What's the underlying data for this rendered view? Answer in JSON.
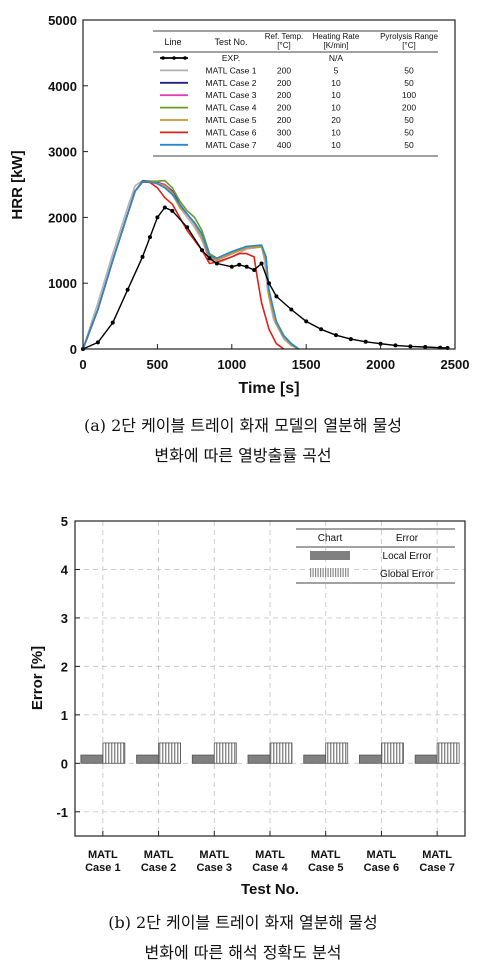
{
  "figure": {
    "caption_a_line1": "(a) 2단 케이블 트레이 화재 모델의 열분해 물성",
    "caption_a_line2": "변화에 따른 열방출률 곡선",
    "caption_b_line1": "(b) 2단 케이블 트레이 화재 열분해 물성",
    "caption_b_line2": "변화에 따른 해석 정확도 분석"
  },
  "chart_data": [
    {
      "type": "line",
      "xlabel": "Time [s]",
      "ylabel": "HRR [kW]",
      "xlim": [
        0,
        2500
      ],
      "ylim": [
        0,
        5000
      ],
      "xticks": [
        0,
        500,
        1000,
        1500,
        2000,
        2500
      ],
      "yticks": [
        0,
        1000,
        2000,
        3000,
        4000,
        5000
      ],
      "grid": false,
      "legend_table": {
        "headers": [
          "Line",
          "Test No.",
          "Ref. Temp. [°C]",
          "Heating Rate [K/min]",
          "Pyrolysis Range [°C]"
        ],
        "rows": [
          {
            "test": "EXP.",
            "ref_temp": "",
            "heating_rate": "N/A",
            "pyrolysis": ""
          },
          {
            "test": "MATL Case 1",
            "ref_temp": "200",
            "heating_rate": "5",
            "pyrolysis": "50"
          },
          {
            "test": "MATL Case 2",
            "ref_temp": "200",
            "heating_rate": "10",
            "pyrolysis": "50"
          },
          {
            "test": "MATL Case 3",
            "ref_temp": "200",
            "heating_rate": "10",
            "pyrolysis": "100"
          },
          {
            "test": "MATL Case 4",
            "ref_temp": "200",
            "heating_rate": "10",
            "pyrolysis": "200"
          },
          {
            "test": "MATL Case 5",
            "ref_temp": "200",
            "heating_rate": "20",
            "pyrolysis": "50"
          },
          {
            "test": "MATL Case 6",
            "ref_temp": "300",
            "heating_rate": "10",
            "pyrolysis": "50"
          },
          {
            "test": "MATL Case 7",
            "ref_temp": "400",
            "heating_rate": "10",
            "pyrolysis": "50"
          }
        ]
      },
      "series": [
        {
          "name": "EXP.",
          "color": "#000000",
          "marker": "circle",
          "x": [
            0,
            100,
            200,
            300,
            400,
            450,
            500,
            550,
            600,
            700,
            800,
            850,
            900,
            1000,
            1050,
            1100,
            1150,
            1200,
            1250,
            1300,
            1400,
            1500,
            1600,
            1700,
            1800,
            1900,
            2000,
            2100,
            2200,
            2300,
            2400,
            2450
          ],
          "y": [
            0,
            100,
            400,
            900,
            1400,
            1700,
            2000,
            2150,
            2100,
            1850,
            1500,
            1380,
            1300,
            1250,
            1280,
            1250,
            1200,
            1300,
            1000,
            800,
            600,
            420,
            300,
            210,
            150,
            110,
            80,
            55,
            40,
            30,
            20,
            15
          ]
        },
        {
          "name": "MATL Case 1",
          "color": "#b3b3b3",
          "x": [
            0,
            100,
            200,
            300,
            350,
            400,
            450,
            500,
            550,
            600,
            650,
            700,
            750,
            800,
            850,
            900,
            1000,
            1100,
            1200,
            1220,
            1240,
            1280,
            1350,
            1400,
            1450
          ],
          "y": [
            0,
            700,
            1450,
            2150,
            2480,
            2560,
            2550,
            2520,
            2450,
            2350,
            2150,
            2000,
            1850,
            1650,
            1350,
            1300,
            1400,
            1520,
            1550,
            1350,
            900,
            450,
            150,
            50,
            0
          ]
        },
        {
          "name": "MATL Case 2",
          "color": "#1f1f8f",
          "x": [
            0,
            100,
            200,
            300,
            350,
            400,
            450,
            500,
            550,
            600,
            650,
            700,
            750,
            800,
            850,
            900,
            1000,
            1100,
            1200,
            1230,
            1250,
            1300,
            1350,
            1400,
            1450
          ],
          "y": [
            0,
            600,
            1350,
            2050,
            2400,
            2550,
            2550,
            2530,
            2500,
            2400,
            2200,
            2050,
            1900,
            1720,
            1400,
            1350,
            1450,
            1550,
            1560,
            1400,
            850,
            400,
            200,
            80,
            0
          ]
        },
        {
          "name": "MATL Case 3",
          "color": "#e040b0",
          "x": [
            0,
            100,
            200,
            300,
            350,
            400,
            450,
            500,
            550,
            600,
            650,
            700,
            750,
            800,
            850,
            900,
            1000,
            1100,
            1200,
            1230,
            1250,
            1300,
            1350,
            1400,
            1450
          ],
          "y": [
            0,
            600,
            1350,
            2050,
            2400,
            2540,
            2540,
            2520,
            2500,
            2380,
            2180,
            2050,
            1900,
            1700,
            1380,
            1350,
            1450,
            1540,
            1560,
            1350,
            800,
            380,
            180,
            60,
            0
          ]
        },
        {
          "name": "MATL Case 4",
          "color": "#6a9a2a",
          "x": [
            0,
            100,
            200,
            300,
            350,
            400,
            450,
            500,
            550,
            600,
            650,
            700,
            750,
            800,
            850,
            900,
            1000,
            1100,
            1200,
            1230,
            1250,
            1300,
            1350,
            1400,
            1450
          ],
          "y": [
            0,
            600,
            1350,
            2050,
            2400,
            2540,
            2550,
            2550,
            2560,
            2450,
            2250,
            2100,
            2000,
            1800,
            1450,
            1380,
            1480,
            1560,
            1570,
            1400,
            850,
            400,
            190,
            70,
            0
          ]
        },
        {
          "name": "MATL Case 5",
          "color": "#c8962c",
          "x": [
            0,
            100,
            200,
            300,
            350,
            400,
            450,
            500,
            550,
            600,
            650,
            700,
            750,
            800,
            850,
            900,
            1000,
            1100,
            1200,
            1230,
            1250,
            1300,
            1350,
            1400,
            1450
          ],
          "y": [
            0,
            600,
            1350,
            2050,
            2400,
            2540,
            2540,
            2520,
            2480,
            2380,
            2150,
            2050,
            1900,
            1700,
            1400,
            1350,
            1450,
            1540,
            1550,
            1350,
            800,
            380,
            180,
            60,
            0
          ]
        },
        {
          "name": "MATL Case 6",
          "color": "#e0201a",
          "x": [
            0,
            100,
            200,
            300,
            350,
            400,
            450,
            500,
            550,
            600,
            650,
            700,
            750,
            800,
            850,
            900,
            1000,
            1050,
            1100,
            1150,
            1170,
            1200,
            1250,
            1300,
            1350
          ],
          "y": [
            0,
            600,
            1350,
            2050,
            2400,
            2540,
            2530,
            2450,
            2300,
            2200,
            2000,
            1800,
            1650,
            1500,
            1300,
            1320,
            1400,
            1450,
            1450,
            1400,
            1100,
            700,
            300,
            80,
            0
          ]
        },
        {
          "name": "MATL Case 7",
          "color": "#2a88d0",
          "x": [
            0,
            100,
            200,
            300,
            350,
            400,
            450,
            500,
            550,
            600,
            650,
            700,
            750,
            800,
            850,
            900,
            1000,
            1100,
            1200,
            1230,
            1250,
            1300,
            1350,
            1400,
            1450
          ],
          "y": [
            0,
            600,
            1350,
            2050,
            2400,
            2540,
            2540,
            2510,
            2450,
            2350,
            2200,
            2050,
            1920,
            1750,
            1420,
            1380,
            1480,
            1560,
            1580,
            1400,
            900,
            420,
            200,
            80,
            0
          ]
        }
      ]
    },
    {
      "type": "bar",
      "xlabel": "Test No.",
      "ylabel": "Error [%]",
      "ylim": [
        -1.5,
        5
      ],
      "yticks": [
        -1,
        0,
        1,
        2,
        3,
        4,
        5
      ],
      "grid": true,
      "categories": [
        "MATL Case 1",
        "MATL Case 2",
        "MATL Case 3",
        "MATL Case 4",
        "MATL Case 5",
        "MATL Case 6",
        "MATL Case 7"
      ],
      "legend_headers": [
        "Chart",
        "Error"
      ],
      "series": [
        {
          "name": "Local Error",
          "color": "#808080",
          "pattern": "solid",
          "values": [
            0.17,
            0.17,
            0.17,
            0.17,
            0.17,
            0.17,
            0.17
          ]
        },
        {
          "name": "Global Error",
          "color": "#d0d0d0",
          "pattern": "vertical-hatch",
          "values": [
            0.42,
            0.42,
            0.42,
            0.42,
            0.42,
            0.42,
            0.42
          ]
        }
      ]
    }
  ]
}
